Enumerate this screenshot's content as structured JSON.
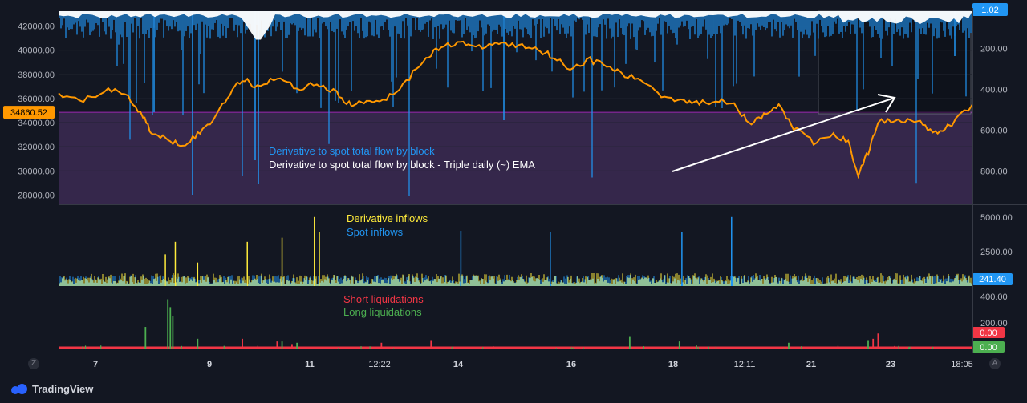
{
  "brand": {
    "name": "TradingView"
  },
  "controls": {
    "left_btn": "Z",
    "right_btn": "A"
  },
  "colors": {
    "background": "#131722",
    "grid": "#1e222d",
    "price_line": "#ff9800",
    "flow_blue": "#2196f3",
    "ema_white": "#ffffff",
    "purple_zone": "#3c2a52",
    "derivative_yellow": "#ffeb3b",
    "spot_blue": "#2196f3",
    "short_red": "#f23645",
    "long_green": "#4caf50"
  },
  "chart_data": [
    {
      "type": "line",
      "pane": "price",
      "series": [
        {
          "name": "Derivative to spot total flow by block",
          "axis": "right"
        },
        {
          "name": "Derivative to spot total flow by block - Triple daily (~) EMA",
          "axis": "right"
        },
        {
          "name": "",
          "axis": "left",
          "x": [
            6.5,
            7.0,
            7.5,
            7.9,
            8.2,
            8.4,
            8.7,
            9.0,
            9.3,
            9.6,
            9.9,
            10.2,
            10.5,
            10.9,
            11.3,
            11.7,
            12.1,
            12.4,
            12.7,
            13.1,
            13.5,
            13.9,
            14.2,
            14.6,
            14.9,
            15.3,
            15.7,
            16.1,
            16.4,
            16.8,
            17.2,
            17.6,
            17.9,
            18.3,
            18.7,
            19.1,
            19.4,
            19.8,
            20.1,
            20.4,
            20.7,
            21.0,
            21.3,
            21.7,
            22.1,
            22.4,
            22.6,
            22.8,
            23.0,
            23.4,
            23.8,
            24.1,
            24.4,
            24.9
          ],
          "y": [
            36200,
            35800,
            36800,
            36200,
            34500,
            33000,
            32600,
            32200,
            33000,
            34200,
            36200,
            37600,
            37000,
            37800,
            36800,
            37300,
            36400,
            35400,
            35800,
            36000,
            37400,
            39500,
            40200,
            40800,
            40100,
            40600,
            40400,
            40200,
            39600,
            38500,
            39200,
            38600,
            37900,
            37400,
            36100,
            35900,
            35600,
            35900,
            35700,
            33800,
            34600,
            35400,
            33600,
            32300,
            33000,
            32400,
            29700,
            31500,
            34100,
            34200,
            34300,
            33000,
            33600,
            35500
          ]
        }
      ],
      "left_axis": {
        "ticks": [
          "42000.00",
          "40000.00",
          "38000.00",
          "36000.00",
          "34000.00",
          "32000.00",
          "30000.00",
          "28000.00"
        ],
        "ylim": [
          27300,
          43500
        ]
      },
      "right_axis": {
        "ticks": [
          "200.00",
          "400.00",
          "600.00",
          "800.00"
        ],
        "ylim": [
          1.02,
          960
        ],
        "inverted": true
      },
      "highlight_zone": {
        "from": 27300,
        "to": 34860.52
      },
      "current_price_label": "34860.52",
      "top_right_label": "1.02"
    },
    {
      "type": "bar",
      "pane": "inflows",
      "series": [
        {
          "name": "Derivative inflows",
          "spikes": {
            "x": [
              8.65,
              8.85,
              9.3,
              10.3,
              11.0,
              11.65,
              11.75
            ],
            "y": [
              2300,
              3200,
              1700,
              3200,
              3500,
              5000,
              3900
            ]
          }
        },
        {
          "name": "Spot inflows",
          "spikes": {
            "x": [
              14.6,
              16.4,
              19.05,
              20.05
            ],
            "y": [
              4000,
              3900,
              3900,
              5000
            ]
          }
        }
      ],
      "right_axis": {
        "ticks": [
          "5000.00",
          "2500.00"
        ],
        "ylim": [
          0,
          5800
        ]
      },
      "last_value_label": "241.40"
    },
    {
      "type": "bar",
      "pane": "liquidations",
      "series": [
        {
          "name": "Short liquidations",
          "spikes": {
            "x": [
              10.2,
              10.9,
              11.2,
              13.0,
              14.0,
              22.9,
              23.0
            ],
            "y": [
              80,
              60,
              40,
              50,
              70,
              80,
              120
            ]
          }
        },
        {
          "name": "Long liquidations",
          "spikes": {
            "x": [
              8.25,
              8.7,
              8.75,
              8.8,
              9.3,
              11.0,
              11.3,
              18.0,
              19.0,
              21.2,
              22.8,
              23.0
            ],
            "y": [
              170,
              380,
              320,
              250,
              80,
              60,
              50,
              100,
              60,
              50,
              70,
              110
            ]
          }
        }
      ],
      "right_axis": {
        "ticks": [
          "400.00",
          "200.00"
        ],
        "ylim": [
          0,
          450
        ]
      },
      "short_value_label": "0.00",
      "long_value_label": "0.00"
    }
  ],
  "time_axis": {
    "ticks": [
      "7",
      "9",
      "11",
      "12:22",
      "14",
      "16",
      "18",
      "12:11",
      "21",
      "23",
      "18:05"
    ]
  }
}
